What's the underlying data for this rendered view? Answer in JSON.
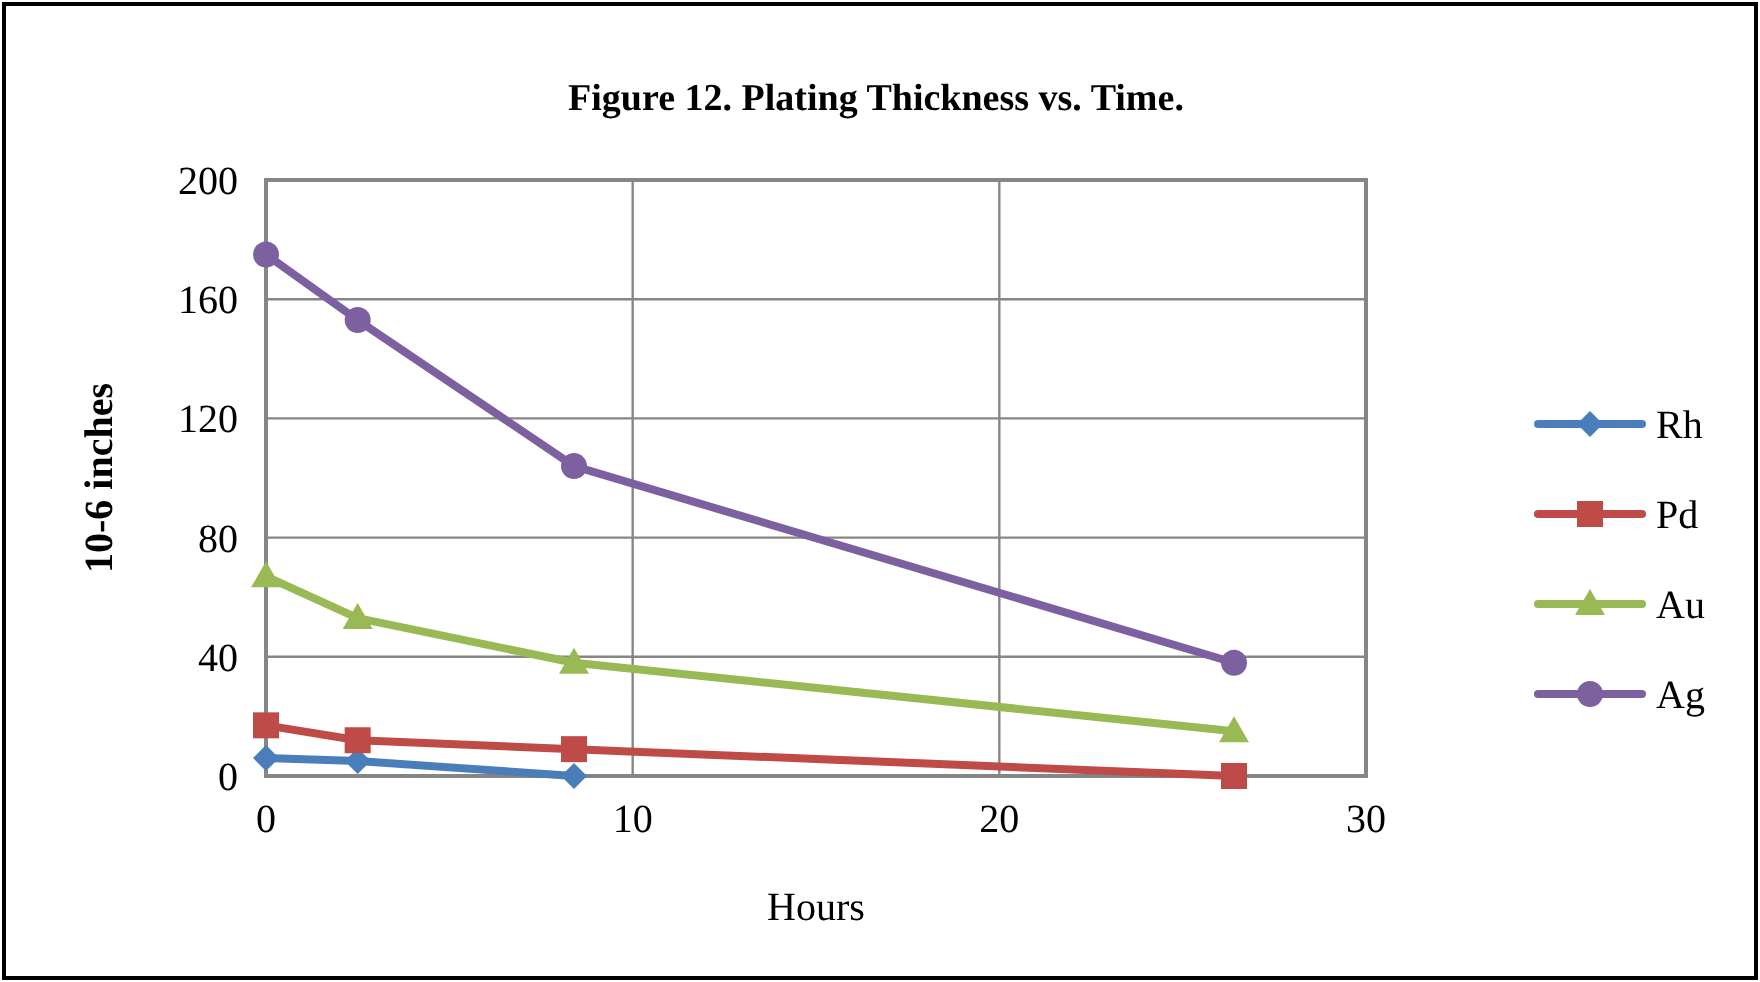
{
  "chart_data": {
    "type": "line",
    "title": "Figure 12.   Plating Thickness vs. Time.",
    "xlabel": "Hours",
    "ylabel": "10-6 inches",
    "xlim": [
      0,
      30
    ],
    "xticks": [
      0,
      10,
      20,
      30
    ],
    "ylim": [
      0,
      200
    ],
    "yticks": [
      0,
      40,
      80,
      120,
      160,
      200
    ],
    "grid": true,
    "legend": "right",
    "line_style": "solid",
    "series": [
      {
        "name": "Rh",
        "color": "#4a7ebb",
        "marker": "diamond",
        "x": [
          0,
          2.5,
          8.4
        ],
        "values": [
          6,
          5,
          0
        ]
      },
      {
        "name": "Pd",
        "color": "#be4b48",
        "marker": "square",
        "x": [
          0,
          2.5,
          8.4,
          26.4
        ],
        "values": [
          17,
          12,
          9,
          0
        ]
      },
      {
        "name": "Au",
        "color": "#98b954",
        "marker": "triangle",
        "x": [
          0,
          2.5,
          8.4,
          26.4
        ],
        "values": [
          67,
          53,
          38,
          15
        ]
      },
      {
        "name": "Ag",
        "color": "#7d60a0",
        "marker": "circle",
        "x": [
          0,
          2.5,
          8.4,
          26.4
        ],
        "values": [
          175,
          153,
          104,
          38
        ]
      }
    ]
  }
}
